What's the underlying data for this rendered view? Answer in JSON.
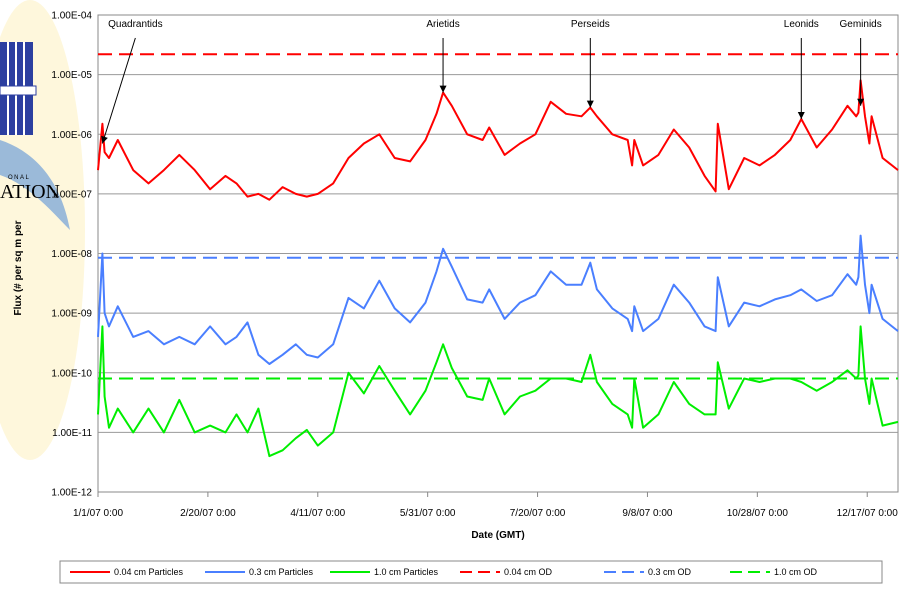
{
  "logo": {
    "word_top": "ONAL",
    "word_main": "ATION"
  },
  "chart_data": {
    "type": "line",
    "title": "",
    "xlabel": "Date (GMT)",
    "ylabel": "Flux (# per sq m per",
    "y_scale": "log",
    "ylim": [
      "1.00E-12",
      "1.00E-04"
    ],
    "y_ticks": [
      "1.00E-12",
      "1.00E-11",
      "1.00E-10",
      "1.00E-09",
      "1.00E-08",
      "1.00E-07",
      "1.00E-06",
      "1.00E-05",
      "1.00E-04"
    ],
    "xlim": [
      "1/1/07 0:00",
      "12/31/07 0:00"
    ],
    "x_ticks": [
      "1/1/07 0:00",
      "2/20/07 0:00",
      "4/11/07 0:00",
      "5/31/07 0:00",
      "7/20/07 0:00",
      "9/8/07 0:00",
      "10/28/07 0:00",
      "12/17/07 0:00"
    ],
    "grid": true,
    "legend_position": "bottom",
    "annotations": [
      {
        "label": "Quadrantids",
        "date": "1/3/07",
        "value": 7e-07
      },
      {
        "label": "Arietids",
        "date": "6/7/07",
        "value": 5e-06
      },
      {
        "label": "Perseids",
        "date": "8/13/07",
        "value": 2.8e-06
      },
      {
        "label": "Leonids",
        "date": "11/17/07",
        "value": 1.8e-06
      },
      {
        "label": "Geminids",
        "date": "12/14/07",
        "value": 3e-06
      }
    ],
    "series": [
      {
        "name": "0.04 cm Particles",
        "color": "#ff0000",
        "dash": "solid",
        "x": [
          "1/1/07",
          "1/3/07",
          "1/4/07",
          "1/6/07",
          "1/10/07",
          "1/17/07",
          "1/24/07",
          "1/31/07",
          "2/7/07",
          "2/14/07",
          "2/21/07",
          "2/28/07",
          "3/5/07",
          "3/10/07",
          "3/15/07",
          "3/20/07",
          "3/26/07",
          "4/1/07",
          "4/6/07",
          "4/11/07",
          "4/18/07",
          "4/25/07",
          "5/2/07",
          "5/9/07",
          "5/16/07",
          "5/23/07",
          "5/30/07",
          "6/4/07",
          "6/7/07",
          "6/11/07",
          "6/18/07",
          "6/25/07",
          "6/28/07",
          "7/5/07",
          "7/12/07",
          "7/19/07",
          "7/26/07",
          "8/2/07",
          "8/9/07",
          "8/13/07",
          "8/16/07",
          "8/23/07",
          "8/30/07",
          "9/1/07",
          "9/2/07",
          "9/6/07",
          "9/13/07",
          "9/20/07",
          "9/27/07",
          "10/4/07",
          "10/9/07",
          "10/10/07",
          "10/15/07",
          "10/22/07",
          "10/29/07",
          "11/5/07",
          "11/12/07",
          "11/17/07",
          "11/24/07",
          "12/1/07",
          "12/8/07",
          "12/12/07",
          "12/13/07",
          "12/14/07",
          "12/16/07",
          "12/18/07",
          "12/19/07",
          "12/24/07",
          "12/31/07"
        ],
        "y": [
          2.5e-07,
          1.5e-06,
          5e-07,
          4e-07,
          8e-07,
          2.5e-07,
          1.5e-07,
          2.5e-07,
          4.5e-07,
          2.5e-07,
          1.2e-07,
          2e-07,
          1.5e-07,
          9e-08,
          1e-07,
          8e-08,
          1.3e-07,
          1e-07,
          9e-08,
          1e-07,
          1.5e-07,
          4e-07,
          7e-07,
          1e-06,
          4e-07,
          3.5e-07,
          8e-07,
          2.2e-06,
          5e-06,
          3e-06,
          1e-06,
          8e-07,
          1.3e-06,
          4.5e-07,
          7e-07,
          1e-06,
          3.5e-06,
          2.2e-06,
          2e-06,
          2.8e-06,
          2e-06,
          1e-06,
          8e-07,
          3e-07,
          8e-07,
          3e-07,
          4.5e-07,
          1.2e-06,
          6e-07,
          2e-07,
          1.1e-07,
          1.5e-06,
          1.2e-07,
          4e-07,
          3e-07,
          4.5e-07,
          8e-07,
          1.8e-06,
          6e-07,
          1.2e-06,
          3e-06,
          2e-06,
          2.3e-06,
          8e-06,
          2e-06,
          7e-07,
          2e-06,
          4e-07,
          2.5e-07
        ]
      },
      {
        "name": "0.3 cm Particles",
        "color": "#4a7fff",
        "dash": "solid",
        "x": [
          "1/1/07",
          "1/3/07",
          "1/4/07",
          "1/6/07",
          "1/10/07",
          "1/17/07",
          "1/24/07",
          "1/31/07",
          "2/7/07",
          "2/14/07",
          "2/21/07",
          "2/28/07",
          "3/5/07",
          "3/10/07",
          "3/15/07",
          "3/20/07",
          "3/26/07",
          "4/1/07",
          "4/6/07",
          "4/11/07",
          "4/18/07",
          "4/25/07",
          "5/2/07",
          "5/9/07",
          "5/16/07",
          "5/23/07",
          "5/30/07",
          "6/4/07",
          "6/7/07",
          "6/11/07",
          "6/18/07",
          "6/25/07",
          "6/28/07",
          "7/5/07",
          "7/12/07",
          "7/19/07",
          "7/26/07",
          "8/2/07",
          "8/9/07",
          "8/13/07",
          "8/16/07",
          "8/23/07",
          "8/30/07",
          "9/1/07",
          "9/2/07",
          "9/6/07",
          "9/13/07",
          "9/20/07",
          "9/27/07",
          "10/4/07",
          "10/9/07",
          "10/10/07",
          "10/15/07",
          "10/22/07",
          "10/29/07",
          "11/5/07",
          "11/12/07",
          "11/17/07",
          "11/24/07",
          "12/1/07",
          "12/8/07",
          "12/12/07",
          "12/13/07",
          "12/14/07",
          "12/16/07",
          "12/18/07",
          "12/19/07",
          "12/24/07",
          "12/31/07"
        ],
        "y": [
          4e-10,
          1e-08,
          1e-09,
          6e-10,
          1.3e-09,
          4e-10,
          5e-10,
          3e-10,
          4e-10,
          3e-10,
          6e-10,
          3e-10,
          4e-10,
          7e-10,
          2e-10,
          1.4e-10,
          2e-10,
          3e-10,
          2e-10,
          1.8e-10,
          3e-10,
          1.8e-09,
          1.2e-09,
          3.5e-09,
          1.2e-09,
          7e-10,
          1.5e-09,
          5e-09,
          1.2e-08,
          6e-09,
          1.7e-09,
          1.5e-09,
          2.5e-09,
          8e-10,
          1.5e-09,
          2e-09,
          5e-09,
          3e-09,
          3e-09,
          7e-09,
          2.5e-09,
          1.2e-09,
          8e-10,
          5e-10,
          1.3e-09,
          5e-10,
          8e-10,
          3e-09,
          1.5e-09,
          6e-10,
          5e-10,
          4e-09,
          6e-10,
          1.5e-09,
          1.3e-09,
          1.7e-09,
          2e-09,
          2.5e-09,
          1.6e-09,
          2e-09,
          4.5e-09,
          3e-09,
          4e-09,
          2e-08,
          3e-09,
          1e-09,
          3e-09,
          8e-10,
          5e-10
        ]
      },
      {
        "name": "1.0 cm Particles",
        "color": "#00ee00",
        "dash": "solid",
        "x": [
          "1/1/07",
          "1/3/07",
          "1/4/07",
          "1/6/07",
          "1/10/07",
          "1/17/07",
          "1/24/07",
          "1/31/07",
          "2/7/07",
          "2/14/07",
          "2/21/07",
          "2/28/07",
          "3/5/07",
          "3/10/07",
          "3/15/07",
          "3/20/07",
          "3/26/07",
          "4/1/07",
          "4/6/07",
          "4/11/07",
          "4/18/07",
          "4/25/07",
          "5/2/07",
          "5/9/07",
          "5/16/07",
          "5/23/07",
          "5/30/07",
          "6/4/07",
          "6/7/07",
          "6/11/07",
          "6/18/07",
          "6/25/07",
          "6/28/07",
          "7/5/07",
          "7/12/07",
          "7/19/07",
          "7/26/07",
          "8/2/07",
          "8/9/07",
          "8/13/07",
          "8/16/07",
          "8/23/07",
          "8/30/07",
          "9/1/07",
          "9/2/07",
          "9/6/07",
          "9/13/07",
          "9/20/07",
          "9/27/07",
          "10/4/07",
          "10/9/07",
          "10/10/07",
          "10/15/07",
          "10/22/07",
          "10/29/07",
          "11/5/07",
          "11/12/07",
          "11/17/07",
          "11/24/07",
          "12/1/07",
          "12/8/07",
          "12/12/07",
          "12/13/07",
          "12/14/07",
          "12/16/07",
          "12/18/07",
          "12/19/07",
          "12/24/07",
          "12/31/07"
        ],
        "y": [
          2e-11,
          6e-10,
          4e-11,
          1.2e-11,
          2.5e-11,
          1e-11,
          2.5e-11,
          1e-11,
          3.5e-11,
          1e-11,
          1.3e-11,
          1e-11,
          2e-11,
          1e-11,
          2.5e-11,
          4e-12,
          5e-12,
          8e-12,
          1.1e-11,
          6e-12,
          1e-11,
          1e-10,
          4.5e-11,
          1.3e-10,
          5e-11,
          2e-11,
          5e-11,
          1.5e-10,
          3e-10,
          1.2e-10,
          4e-11,
          3.5e-11,
          8e-11,
          2e-11,
          4e-11,
          5e-11,
          8e-11,
          8e-11,
          7e-11,
          2e-10,
          7e-11,
          3e-11,
          2e-11,
          1.2e-11,
          8e-11,
          1.2e-11,
          2e-11,
          7e-11,
          3e-11,
          2e-11,
          2e-11,
          1.5e-10,
          2.5e-11,
          8e-11,
          7e-11,
          8e-11,
          8e-11,
          7e-11,
          5e-11,
          7e-11,
          1.1e-10,
          8e-11,
          9e-11,
          6e-10,
          8e-11,
          3e-11,
          8e-11,
          1.3e-11,
          1.5e-11
        ]
      },
      {
        "name": "0.04 cm OD",
        "color": "#ff0000",
        "dash": "dashed",
        "x": [
          "1/1/07",
          "12/31/07"
        ],
        "y": [
          2.2e-05,
          2.2e-05
        ]
      },
      {
        "name": "0.3 cm OD",
        "color": "#4a7fff",
        "dash": "dashed",
        "x": [
          "1/1/07",
          "12/31/07"
        ],
        "y": [
          8.5e-09,
          8.5e-09
        ]
      },
      {
        "name": "1.0 cm OD",
        "color": "#00ee00",
        "dash": "dashed",
        "x": [
          "1/1/07",
          "12/31/07"
        ],
        "y": [
          8e-11,
          8e-11
        ]
      }
    ]
  }
}
